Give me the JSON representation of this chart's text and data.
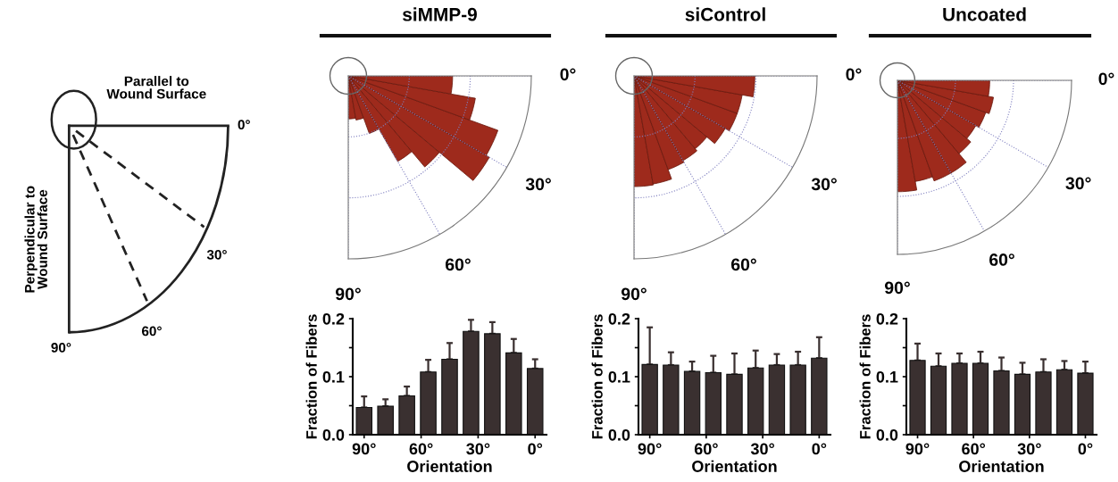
{
  "chart_data": [
    {
      "type": "other",
      "annotations": [
        "Parallel to\nWound Surface",
        "Perpendicular to\nWound Surface",
        "0°",
        "30°",
        "60°",
        "90°"
      ]
    },
    {
      "type": "bar",
      "title": "siMMP-9",
      "annotations": [
        "0°",
        "30°",
        "60°",
        "90°"
      ],
      "xlabel": "Orientation",
      "ylabel": "Fraction of Fibers",
      "x": [
        90,
        78.75,
        67.5,
        56.25,
        45,
        33.75,
        22.5,
        11.25,
        0
      ],
      "xlim": [
        96,
        -6
      ],
      "xticks": [
        {
          "value": 90,
          "label": "90°"
        },
        {
          "value": 60,
          "label": "60°"
        },
        {
          "value": 30,
          "label": "30°"
        },
        {
          "value": 0,
          "label": "0°"
        }
      ],
      "ylim": [
        0,
        0.2
      ],
      "yticks": [
        {
          "value": 0,
          "label": "0.0"
        },
        {
          "value": 0.05,
          "label": null
        },
        {
          "value": 0.1,
          "label": "0.1"
        },
        {
          "value": 0.15,
          "label": null
        },
        {
          "value": 0.2,
          "label": "0.2"
        }
      ],
      "series": [
        {
          "color": "#3a3030",
          "values": [
            0.047,
            0.049,
            0.067,
            0.108,
            0.13,
            0.178,
            0.174,
            0.141,
            0.114
          ],
          "errors": [
            [
              0.047,
              0.066
            ],
            [
              0.049,
              0.061
            ],
            [
              0.067,
              0.083
            ],
            [
              0.108,
              0.129
            ],
            [
              0.13,
              0.158
            ],
            [
              0.178,
              0.198
            ],
            [
              0.174,
              0.194
            ],
            [
              0.141,
              0.165
            ],
            [
              0.114,
              0.13
            ]
          ]
        }
      ]
    },
    {
      "type": "bar",
      "title": "siControl",
      "annotations": [
        "0°",
        "30°",
        "60°",
        "90°"
      ],
      "xlabel": "Orientation",
      "ylabel": "Fraction of Fibers",
      "x": [
        90,
        78.75,
        67.5,
        56.25,
        45,
        33.75,
        22.5,
        11.25,
        0
      ],
      "xlim": [
        96,
        -6
      ],
      "xticks": [
        {
          "value": 90,
          "label": "90°"
        },
        {
          "value": 60,
          "label": "60°"
        },
        {
          "value": 30,
          "label": "30°"
        },
        {
          "value": 0,
          "label": "0°"
        }
      ],
      "ylim": [
        0,
        0.2
      ],
      "yticks": [
        {
          "value": 0,
          "label": "0.0"
        },
        {
          "value": 0.05,
          "label": null
        },
        {
          "value": 0.1,
          "label": "0.1"
        },
        {
          "value": 0.15,
          "label": null
        },
        {
          "value": 0.2,
          "label": "0.2"
        }
      ],
      "series": [
        {
          "color": "#3a3030",
          "values": [
            0.121,
            0.12,
            0.109,
            0.107,
            0.104,
            0.115,
            0.12,
            0.12,
            0.132
          ],
          "errors": [
            [
              0.121,
              0.185
            ],
            [
              0.12,
              0.142
            ],
            [
              0.109,
              0.126
            ],
            [
              0.107,
              0.136
            ],
            [
              0.104,
              0.14
            ],
            [
              0.115,
              0.145
            ],
            [
              0.12,
              0.139
            ],
            [
              0.12,
              0.143
            ],
            [
              0.132,
              0.168
            ]
          ]
        }
      ]
    },
    {
      "type": "bar",
      "title": "Uncoated",
      "annotations": [
        "0°",
        "30°",
        "60°",
        "90°"
      ],
      "xlabel": "Orientation",
      "ylabel": "Fraction of Fibers",
      "x": [
        90,
        78.75,
        67.5,
        56.25,
        45,
        33.75,
        22.5,
        11.25,
        0
      ],
      "xlim": [
        96,
        -6
      ],
      "xticks": [
        {
          "value": 90,
          "label": "90°"
        },
        {
          "value": 60,
          "label": "60°"
        },
        {
          "value": 30,
          "label": "30°"
        },
        {
          "value": 0,
          "label": "0°"
        }
      ],
      "ylim": [
        0,
        0.2
      ],
      "yticks": [
        {
          "value": 0,
          "label": "0.0"
        },
        {
          "value": 0.05,
          "label": null
        },
        {
          "value": 0.1,
          "label": "0.1"
        },
        {
          "value": 0.15,
          "label": null
        },
        {
          "value": 0.2,
          "label": "0.2"
        }
      ],
      "series": [
        {
          "color": "#3a3030",
          "values": [
            0.128,
            0.118,
            0.123,
            0.123,
            0.11,
            0.104,
            0.108,
            0.112,
            0.106
          ],
          "errors": [
            [
              0.128,
              0.157
            ],
            [
              0.118,
              0.14
            ],
            [
              0.123,
              0.14
            ],
            [
              0.123,
              0.143
            ],
            [
              0.11,
              0.133
            ],
            [
              0.104,
              0.124
            ],
            [
              0.108,
              0.13
            ],
            [
              0.112,
              0.127
            ],
            [
              0.106,
              0.126
            ]
          ]
        }
      ]
    }
  ]
}
